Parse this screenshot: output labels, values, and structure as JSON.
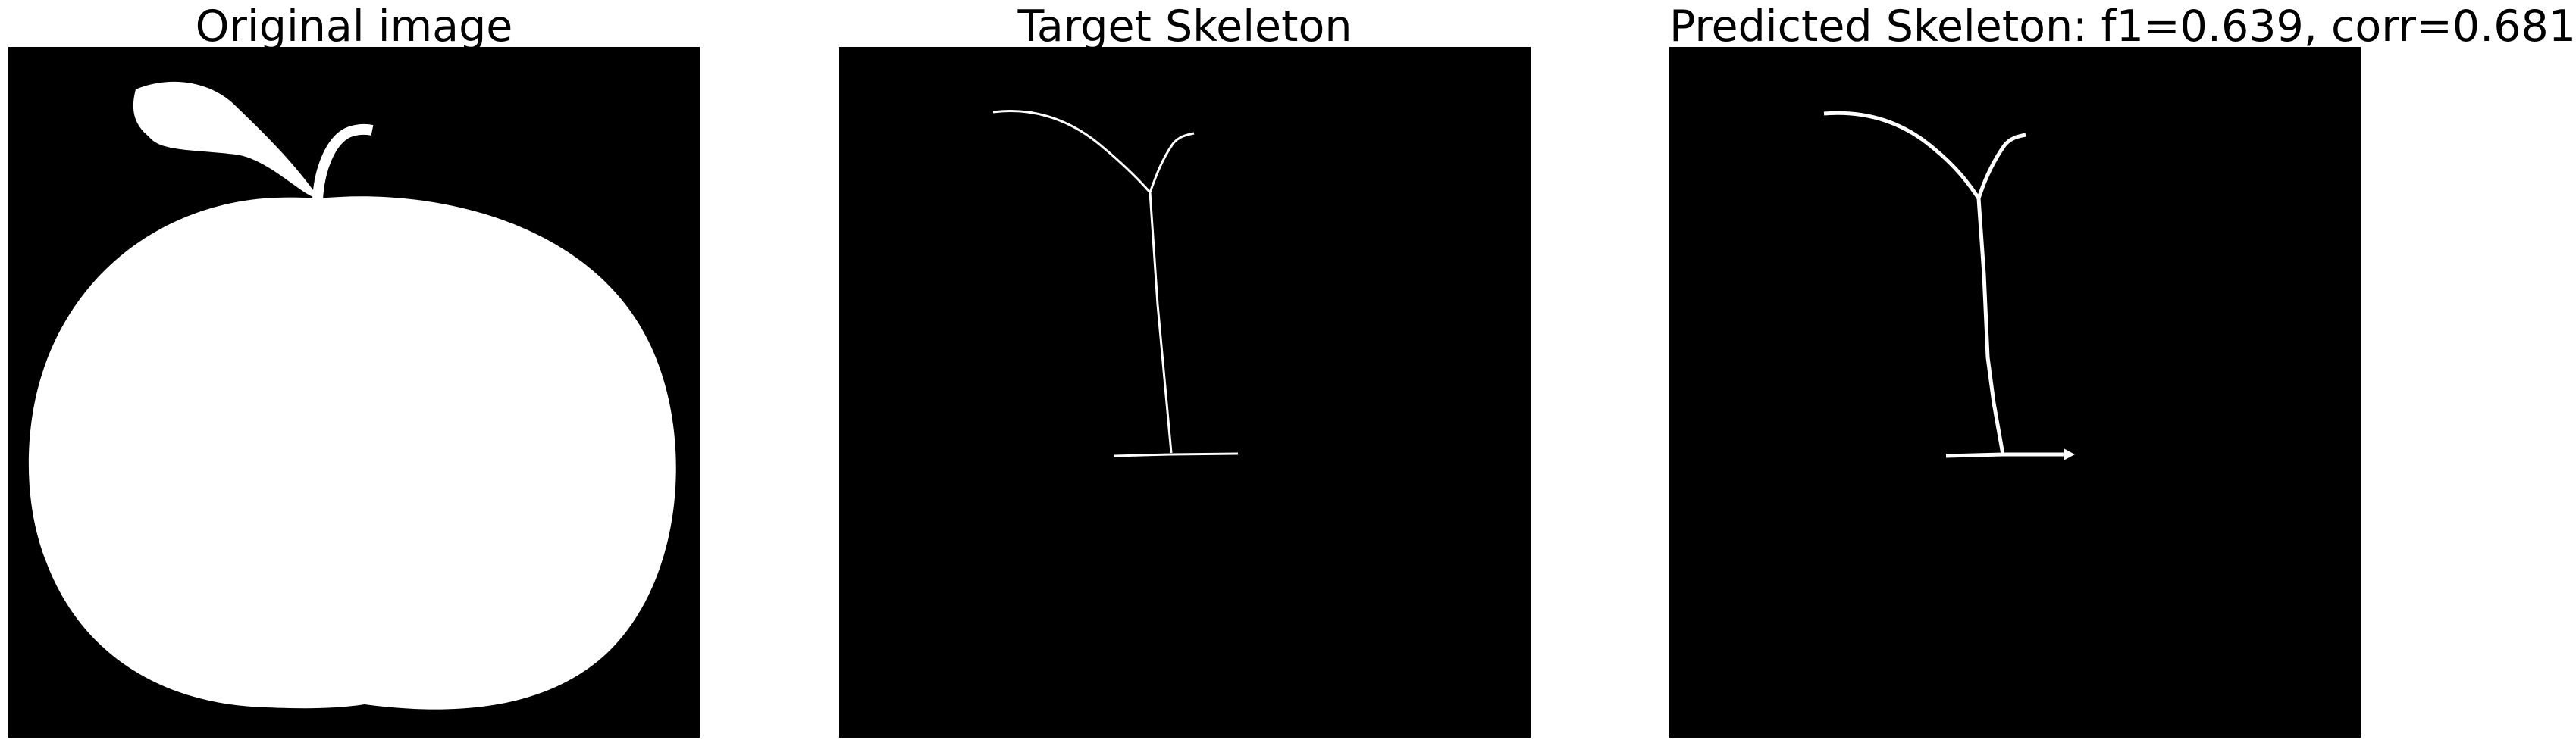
{
  "panels": [
    {
      "title": "Original image",
      "kind": "mask-image",
      "subject": "apple silhouette"
    },
    {
      "title": "Target Skeleton",
      "kind": "skeleton-image"
    },
    {
      "title": "Predicted Skeleton: f1=0.639, corr=0.681",
      "kind": "skeleton-image"
    }
  ],
  "colors": {
    "background": "#000000",
    "foreground": "#ffffff",
    "page": "#ffffff"
  }
}
